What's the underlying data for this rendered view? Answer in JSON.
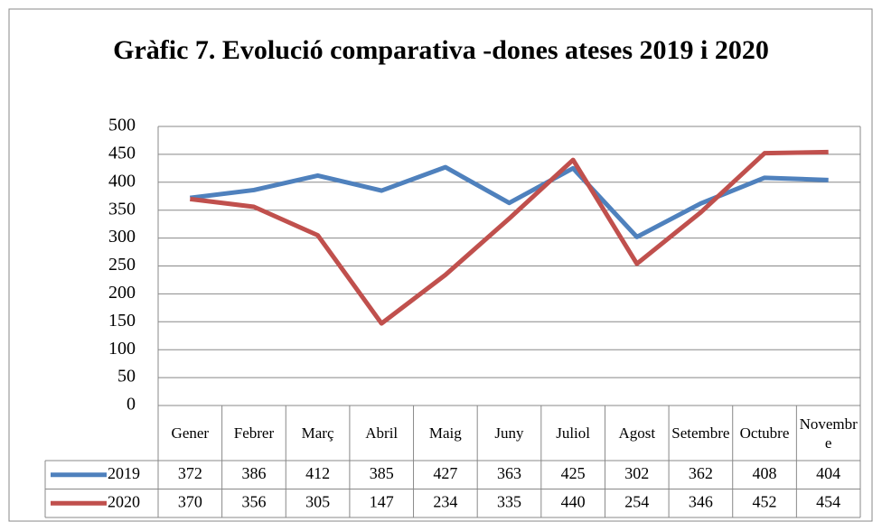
{
  "chart_data": {
    "type": "line",
    "title": "Gràfic 7. Evolució comparativa -dones ateses 2019 i 2020",
    "categories": [
      "Gener",
      "Febrer",
      "Març",
      "Abril",
      "Maig",
      "Juny",
      "Juliol",
      "Agost",
      "Setembre",
      "Octubre",
      "Novembre"
    ],
    "series": [
      {
        "name": "2019",
        "color": "#4f81bd",
        "values": [
          372,
          386,
          412,
          385,
          427,
          363,
          425,
          302,
          362,
          408,
          404
        ]
      },
      {
        "name": "2020",
        "color": "#c0504d",
        "values": [
          370,
          356,
          305,
          147,
          234,
          335,
          440,
          254,
          346,
          452,
          454
        ]
      }
    ],
    "ylim": [
      0,
      500
    ],
    "yticks": [
      0,
      50,
      100,
      150,
      200,
      250,
      300,
      350,
      400,
      450,
      500
    ],
    "grid": true,
    "data_table": true
  }
}
